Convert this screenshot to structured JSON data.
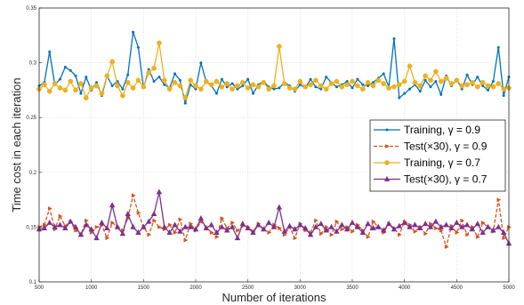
{
  "chart_data": {
    "type": "line",
    "title": "",
    "xlabel": "Number of iterations",
    "ylabel": "Time cost in each iteration",
    "xlim": [
      500,
      5000
    ],
    "ylim": [
      0.1,
      0.35
    ],
    "xticks": [
      "500",
      "1000",
      "1500",
      "2000",
      "2500",
      "3000",
      "3500",
      "4000",
      "4500",
      "5000"
    ],
    "yticks": [
      "0.1",
      "0.15",
      "0.2",
      "0.25",
      "0.3",
      "0.35"
    ],
    "grid": true,
    "legend_position": "right",
    "colors": [
      "#0072BD",
      "#D95319",
      "#EDB120",
      "#7E2F8E"
    ],
    "x": [
      500,
      550,
      600,
      650,
      700,
      750,
      800,
      850,
      900,
      950,
      1000,
      1050,
      1100,
      1150,
      1200,
      1250,
      1300,
      1350,
      1400,
      1450,
      1500,
      1550,
      1600,
      1650,
      1700,
      1750,
      1800,
      1850,
      1900,
      1950,
      2000,
      2050,
      2100,
      2150,
      2200,
      2250,
      2300,
      2350,
      2400,
      2450,
      2500,
      2550,
      2600,
      2650,
      2700,
      2750,
      2800,
      2850,
      2900,
      2950,
      3000,
      3050,
      3100,
      3150,
      3200,
      3250,
      3300,
      3350,
      3400,
      3450,
      3500,
      3550,
      3600,
      3650,
      3700,
      3750,
      3800,
      3850,
      3900,
      3950,
      4000,
      4050,
      4100,
      4150,
      4200,
      4250,
      4300,
      4350,
      4400,
      4450,
      4500,
      4550,
      4600,
      4650,
      4700,
      4750,
      4800,
      4850,
      4900,
      4950,
      5000
    ],
    "series": [
      {
        "name": "Training, γ = 0.9",
        "marker": "dot",
        "dash": "solid",
        "values": [
          0.279,
          0.282,
          0.31,
          0.28,
          0.285,
          0.296,
          0.293,
          0.288,
          0.272,
          0.287,
          0.275,
          0.282,
          0.27,
          0.288,
          0.279,
          0.283,
          0.276,
          0.289,
          0.328,
          0.314,
          0.277,
          0.294,
          0.283,
          0.287,
          0.28,
          0.277,
          0.29,
          0.284,
          0.263,
          0.28,
          0.276,
          0.3,
          0.283,
          0.279,
          0.272,
          0.285,
          0.278,
          0.281,
          0.276,
          0.279,
          0.285,
          0.272,
          0.28,
          0.283,
          0.278,
          0.276,
          0.277,
          0.282,
          0.279,
          0.274,
          0.28,
          0.277,
          0.285,
          0.278,
          0.276,
          0.287,
          0.282,
          0.278,
          0.28,
          0.283,
          0.277,
          0.285,
          0.28,
          0.279,
          0.282,
          0.286,
          0.29,
          0.278,
          0.322,
          0.268,
          0.272,
          0.276,
          0.28,
          0.274,
          0.284,
          0.278,
          0.283,
          0.271,
          0.288,
          0.279,
          0.285,
          0.276,
          0.289,
          0.28,
          0.287,
          0.279,
          0.275,
          0.283,
          0.314,
          0.27,
          0.287
        ]
      },
      {
        "name": "Test(×30), γ = 0.9",
        "marker": "arrow",
        "dash": "dashed",
        "values": [
          0.15,
          0.152,
          0.167,
          0.148,
          0.16,
          0.151,
          0.155,
          0.147,
          0.143,
          0.156,
          0.145,
          0.15,
          0.152,
          0.14,
          0.154,
          0.15,
          0.147,
          0.158,
          0.179,
          0.163,
          0.15,
          0.143,
          0.156,
          0.15,
          0.148,
          0.152,
          0.145,
          0.157,
          0.138,
          0.153,
          0.147,
          0.155,
          0.15,
          0.145,
          0.141,
          0.158,
          0.149,
          0.154,
          0.147,
          0.151,
          0.15,
          0.146,
          0.153,
          0.148,
          0.145,
          0.152,
          0.149,
          0.143,
          0.15,
          0.14,
          0.153,
          0.147,
          0.145,
          0.156,
          0.144,
          0.15,
          0.143,
          0.155,
          0.148,
          0.15,
          0.146,
          0.152,
          0.147,
          0.141,
          0.155,
          0.15,
          0.145,
          0.153,
          0.149,
          0.143,
          0.155,
          0.152,
          0.146,
          0.15,
          0.144,
          0.153,
          0.149,
          0.147,
          0.132,
          0.151,
          0.145,
          0.156,
          0.143,
          0.15,
          0.141,
          0.154,
          0.15,
          0.146,
          0.175,
          0.14,
          0.15
        ]
      },
      {
        "name": "Training, γ = 0.7",
        "marker": "circle",
        "dash": "solid",
        "values": [
          0.276,
          0.28,
          0.274,
          0.281,
          0.277,
          0.275,
          0.283,
          0.275,
          0.281,
          0.268,
          0.277,
          0.279,
          0.272,
          0.288,
          0.301,
          0.279,
          0.27,
          0.282,
          0.277,
          0.284,
          0.278,
          0.291,
          0.295,
          0.318,
          0.284,
          0.276,
          0.282,
          0.279,
          0.268,
          0.284,
          0.279,
          0.276,
          0.283,
          0.28,
          0.283,
          0.278,
          0.281,
          0.276,
          0.279,
          0.282,
          0.277,
          0.28,
          0.278,
          0.282,
          0.276,
          0.279,
          0.315,
          0.281,
          0.277,
          0.276,
          0.283,
          0.278,
          0.28,
          0.284,
          0.279,
          0.276,
          0.281,
          0.283,
          0.278,
          0.28,
          0.283,
          0.279,
          0.276,
          0.282,
          0.279,
          0.284,
          0.281,
          0.277,
          0.278,
          0.28,
          0.283,
          0.297,
          0.282,
          0.279,
          0.288,
          0.284,
          0.292,
          0.283,
          0.286,
          0.281,
          0.284,
          0.279,
          0.28,
          0.282,
          0.278,
          0.282,
          0.279,
          0.278,
          0.281,
          0.276,
          0.277
        ]
      },
      {
        "name": "Test(×30), γ = 0.7",
        "marker": "triangle",
        "dash": "solid",
        "values": [
          0.148,
          0.149,
          0.154,
          0.15,
          0.152,
          0.149,
          0.155,
          0.15,
          0.143,
          0.152,
          0.148,
          0.14,
          0.154,
          0.149,
          0.17,
          0.15,
          0.144,
          0.162,
          0.15,
          0.145,
          0.15,
          0.155,
          0.162,
          0.182,
          0.15,
          0.145,
          0.152,
          0.146,
          0.15,
          0.15,
          0.148,
          0.158,
          0.149,
          0.152,
          0.145,
          0.15,
          0.147,
          0.15,
          0.14,
          0.153,
          0.149,
          0.145,
          0.152,
          0.148,
          0.154,
          0.15,
          0.168,
          0.146,
          0.151,
          0.148,
          0.152,
          0.149,
          0.143,
          0.15,
          0.153,
          0.147,
          0.15,
          0.146,
          0.152,
          0.148,
          0.154,
          0.15,
          0.145,
          0.153,
          0.149,
          0.15,
          0.147,
          0.153,
          0.148,
          0.151,
          0.154,
          0.15,
          0.152,
          0.149,
          0.153,
          0.15,
          0.155,
          0.15,
          0.152,
          0.149,
          0.154,
          0.15,
          0.152,
          0.148,
          0.153,
          0.145,
          0.15,
          0.147,
          0.15,
          0.145,
          0.135
        ]
      }
    ]
  }
}
